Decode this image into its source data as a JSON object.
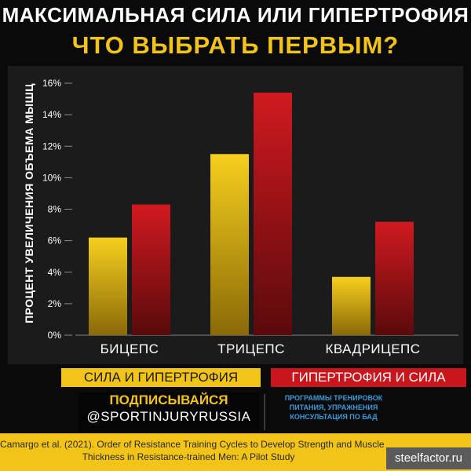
{
  "header": {
    "title_line1": "МАКСИМАЛЬНАЯ СИЛА ИЛИ ГИПЕРТРОФИЯ",
    "title_line2": "ЧТО ВЫБРАТЬ ПЕРВЫМ?"
  },
  "chart_data": {
    "type": "bar",
    "ylabel": "ПРОЦЕНТ УВЕЛИЧЕНИЯ ОБЪЕМА МЫШЦ",
    "xlabel": "",
    "categories": [
      "БИЦЕПС",
      "ТРИЦЕПС",
      "КВАДРИЦЕПС"
    ],
    "series": [
      {
        "name": "СИЛА И ГИПЕРТРОФИЯ",
        "values": [
          6.2,
          11.5,
          3.7
        ],
        "color": "#f2c418"
      },
      {
        "name": "ГИПЕРТРОФИЯ И СИЛА",
        "values": [
          8.3,
          15.4,
          7.2
        ],
        "color": "#c8161c"
      }
    ],
    "ylim": [
      0,
      16
    ],
    "yticks": [
      "0%",
      "2%",
      "4%",
      "6%",
      "8%",
      "10%",
      "12%",
      "14%",
      "16%"
    ],
    "grid": false,
    "legend_position": "bottom"
  },
  "legend": {
    "yellow_label": "СИЛА И ГИПЕРТРОФИЯ",
    "red_label": "ГИПЕРТРОФИЯ И СИЛА"
  },
  "promo": {
    "subscribe": "ПОДПИСЫВАЙСЯ",
    "handle": "@SPORTINJURYRUSSIA",
    "services": [
      "ПРОГРАММЫ ТРЕНИРОВОК",
      "ПИТАНИЯ, УПРАЖНЕНИЯ",
      "КОНСУЛЬТАЦИЯ ПО БАД"
    ]
  },
  "footer": {
    "citation_line1": "Camargo et al. (2021). Order of Resistance Training Cycles to Develop Strength and Muscle",
    "citation_line2": "Thickness in Resistance-trained Men: A Pilot Study",
    "watermark": "steelfactor.ru"
  },
  "colors": {
    "accent_yellow": "#f2c418",
    "accent_red": "#c8161c",
    "background": "#0a0a0a"
  }
}
